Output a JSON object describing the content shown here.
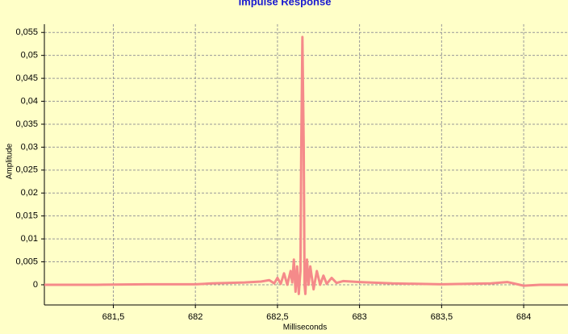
{
  "chart_data": {
    "type": "line",
    "title": "Impulse Response",
    "x_label": "Milliseconds",
    "y_label": "Amplitude",
    "x": [
      681.08,
      681.4,
      681.7,
      682.0,
      682.1,
      682.3,
      682.4,
      682.45,
      682.48,
      682.5,
      682.52,
      682.54,
      682.56,
      682.58,
      682.59,
      682.6,
      682.61,
      682.62,
      682.63,
      682.64,
      682.645,
      682.652,
      682.66,
      682.665,
      682.67,
      682.68,
      682.69,
      682.7,
      682.72,
      682.74,
      682.76,
      682.78,
      682.8,
      682.83,
      682.86,
      682.9,
      683.0,
      683.2,
      683.5,
      683.8,
      683.9,
      684.0,
      684.1,
      684.27
    ],
    "series": [
      {
        "color": "#f58a8a",
        "values": [
          0,
          0,
          0.0001,
          0.0001,
          0.0003,
          0.0005,
          0.0007,
          0.001,
          0.0003,
          0.0015,
          0.0002,
          0.0025,
          0.0,
          0.003,
          0.0005,
          0.0055,
          -0.0015,
          0.004,
          -0.002,
          0.003,
          0.03,
          0.054,
          0.03,
          0.0,
          -0.002,
          0.0055,
          0.0,
          0.004,
          -0.001,
          0.003,
          0.0,
          0.002,
          0.0002,
          0.0015,
          0.0004,
          0.0008,
          0.0006,
          0.0003,
          0.0001,
          0.0003,
          0.0006,
          -0.0002,
          0.0,
          0.0
        ]
      }
    ],
    "xlim": [
      681.08,
      684.27
    ],
    "ylim": [
      -0.0044,
      0.0568
    ],
    "xticks": [
      {
        "value": 681.5,
        "label": "681,5"
      },
      682,
      {
        "value": 682.5,
        "label": "682,5"
      },
      683,
      {
        "value": 683.5,
        "label": "683,5"
      },
      684
    ],
    "yticks": [
      0,
      {
        "value": 0.005,
        "label": "0,005"
      },
      {
        "value": 0.01,
        "label": "0,01"
      },
      {
        "value": 0.015,
        "label": "0,015"
      },
      {
        "value": 0.02,
        "label": "0,02"
      },
      {
        "value": 0.025,
        "label": "0,025"
      },
      {
        "value": 0.03,
        "label": "0,03"
      },
      {
        "value": 0.035,
        "label": "0,035"
      },
      {
        "value": 0.04,
        "label": "0,04"
      },
      {
        "value": 0.045,
        "label": "0,045"
      },
      {
        "value": 0.05,
        "label": "0,05"
      },
      {
        "value": 0.055,
        "label": "0,055"
      }
    ],
    "grid": true
  }
}
